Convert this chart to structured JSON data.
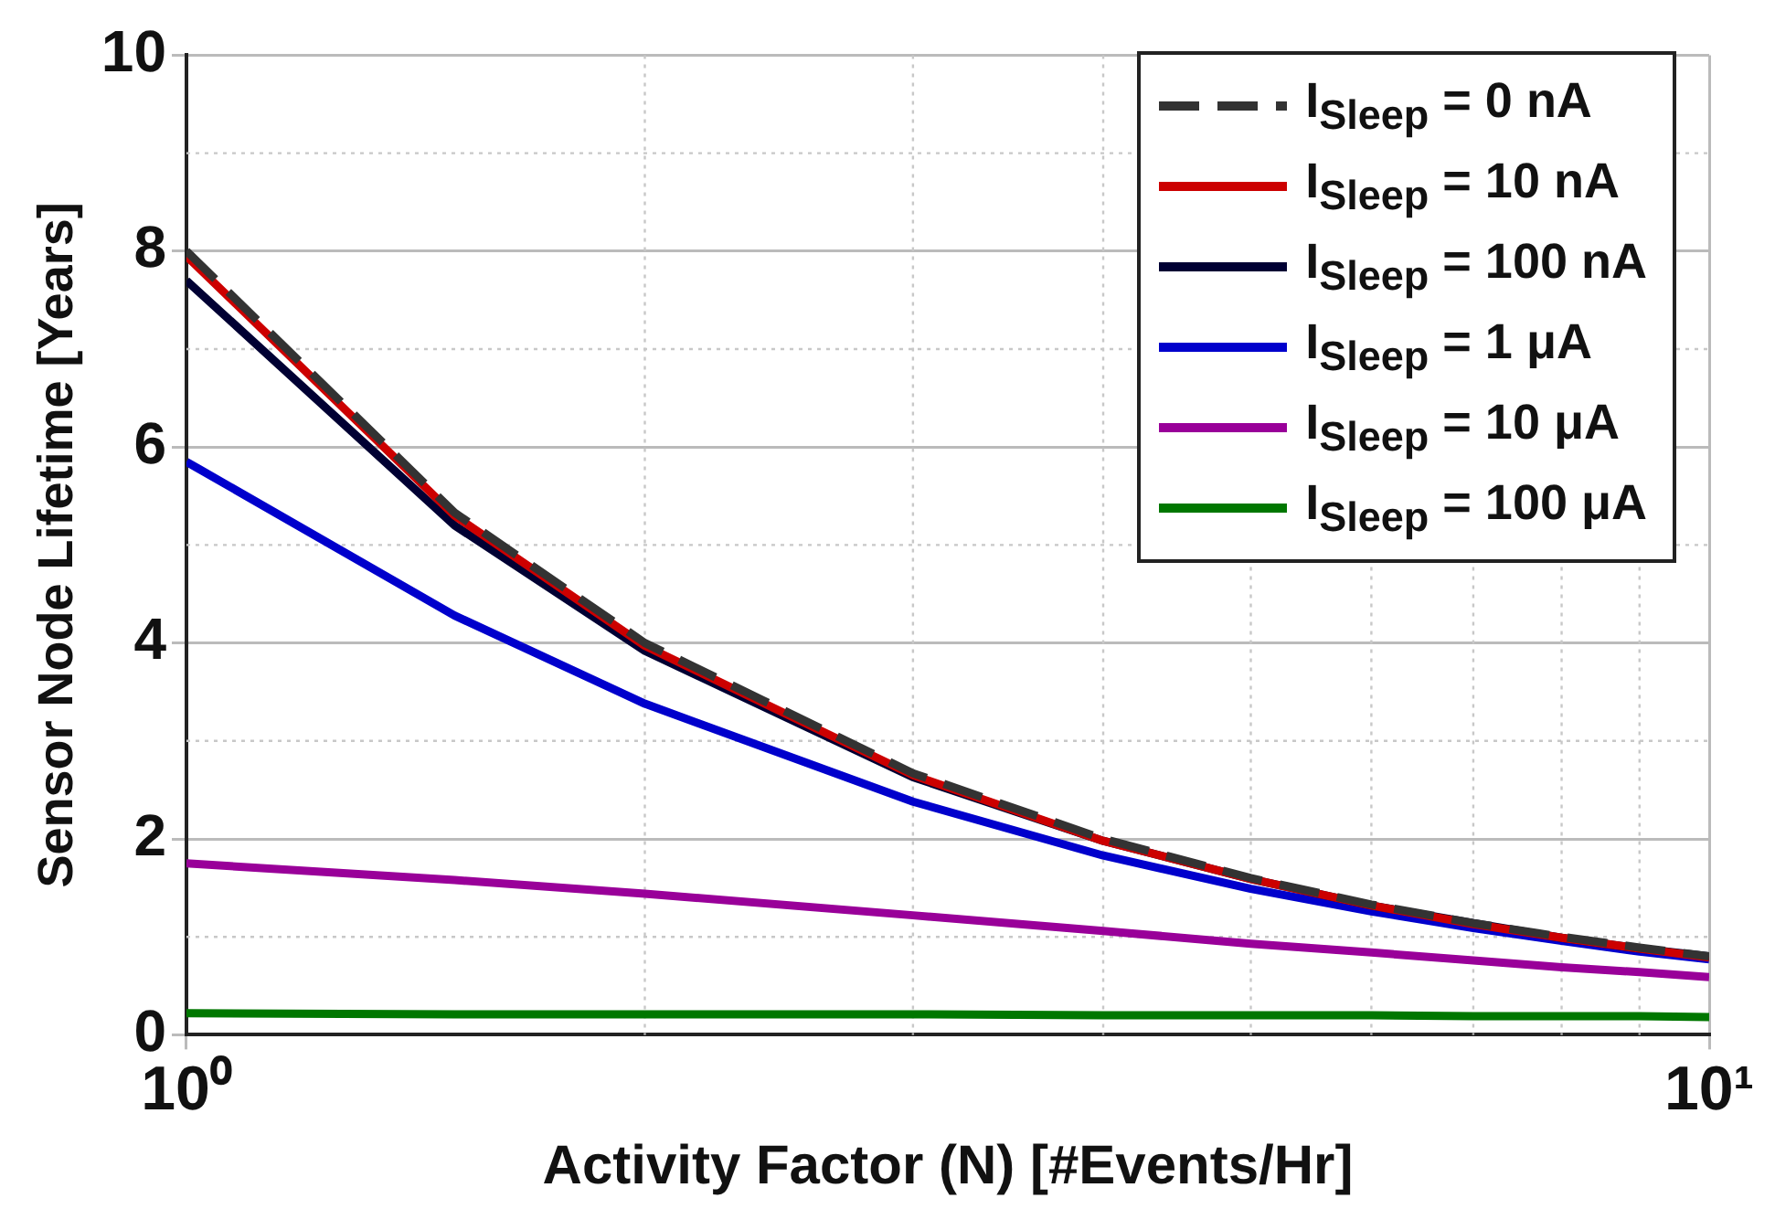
{
  "chart_data": {
    "type": "line",
    "xlabel": "Activity Factor (N) [#Events/Hr]",
    "ylabel": "Sensor Node Lifetime [Years]",
    "x": [
      1,
      1.5,
      2,
      3,
      4,
      5,
      6,
      7,
      8,
      9,
      10
    ],
    "xlim": [
      1,
      10
    ],
    "xticks": [
      {
        "value": 1,
        "label": "10⁰"
      },
      {
        "value": 10,
        "label": "10¹"
      }
    ],
    "ylim": [
      0,
      10
    ],
    "yticks": [
      0,
      2,
      4,
      6,
      8,
      10
    ],
    "log": "x",
    "grid": true,
    "legend": "top right",
    "marker": "none",
    "series": [
      {
        "name": "I$_{Sleep}$ = 0 nA",
        "color": "#333333",
        "line_style": "dashed",
        "values": [
          8,
          5.33,
          4,
          2.67,
          2,
          1.6,
          1.33,
          1.14,
          1,
          0.89,
          0.8
        ]
      },
      {
        "name": "I$_{Sleep}$ = 10 nA",
        "color": "#cc0000",
        "values": [
          7.95,
          5.3,
          3.97,
          2.65,
          1.98,
          1.59,
          1.32,
          1.13,
          0.99,
          0.88,
          0.79
        ]
      },
      {
        "name": "I$_{Sleep}$ = 100 nA",
        "color": "#000033",
        "values": [
          7.7,
          5.2,
          3.92,
          2.63,
          1.98,
          1.59,
          1.32,
          1.14,
          0.99,
          0.88,
          0.8
        ]
      },
      {
        "name": "I$_{Sleep}$ = 1 μA",
        "color": "#0000cc",
        "values": [
          5.85,
          4.28,
          3.38,
          2.38,
          1.83,
          1.49,
          1.26,
          1.09,
          0.96,
          0.85,
          0.77
        ]
      },
      {
        "name": "I$_{Sleep}$ = 10 μA",
        "color": "#990099",
        "values": [
          1.75,
          1.58,
          1.44,
          1.22,
          1.06,
          0.93,
          0.84,
          0.76,
          0.69,
          0.64,
          0.59
        ]
      },
      {
        "name": "I$_{Sleep}$ = 100 μA",
        "color": "#007700",
        "values": [
          0.22,
          0.21,
          0.21,
          0.21,
          0.2,
          0.2,
          0.2,
          0.19,
          0.19,
          0.19,
          0.18
        ]
      }
    ]
  }
}
